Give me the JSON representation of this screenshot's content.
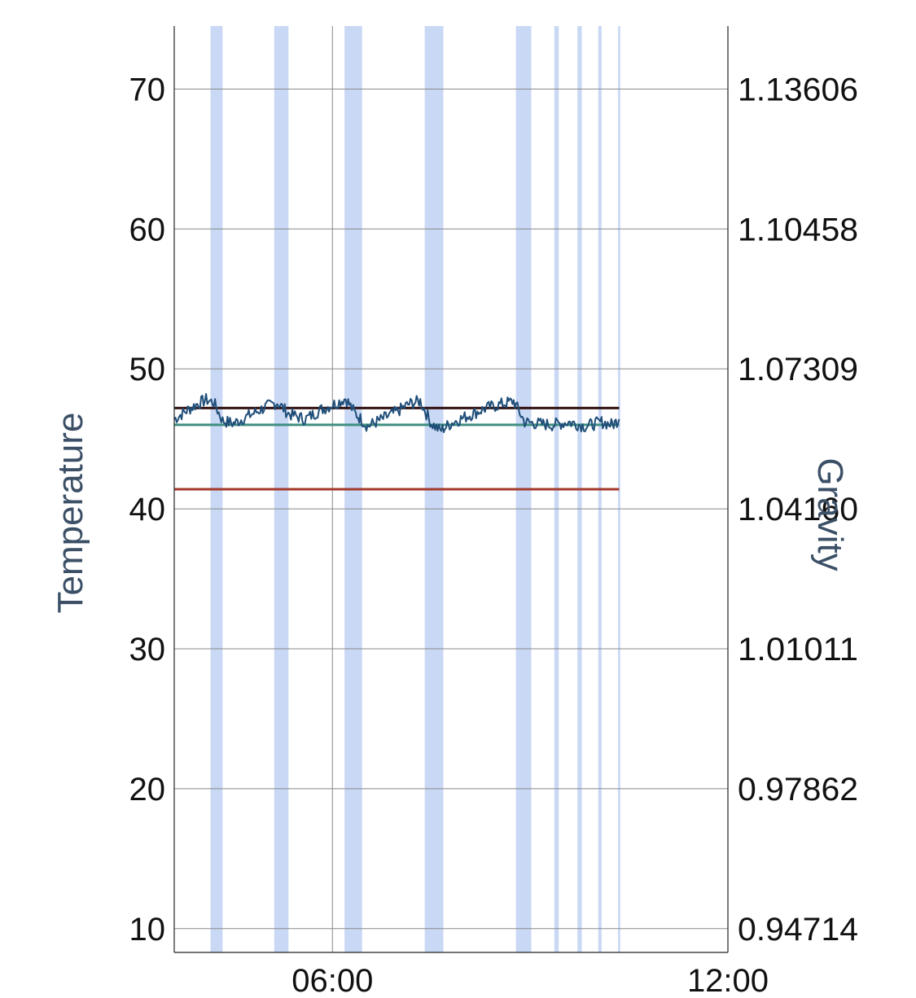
{
  "chart_data": {
    "type": "line",
    "x_axis": {
      "type": "time",
      "ticks": [
        "06:00",
        "12:00"
      ],
      "range": [
        "03:36",
        "12:00"
      ]
    },
    "y_left": {
      "label": "Temperature",
      "range": [
        8.3,
        74.5
      ],
      "ticks": [
        70,
        60,
        50,
        40,
        30,
        20,
        10
      ]
    },
    "y_right": {
      "label": "Gravity",
      "tick_labels": [
        "1.13606",
        "1.10458",
        "1.07309",
        "1.04160",
        "1.01011",
        "0.97862",
        "0.94714"
      ]
    },
    "grid": true,
    "colors": {
      "temperature_line": "#1f4e79",
      "upper_reference": "#2b0a0a",
      "middle_reference": "#3f8f80",
      "lower_reference": "#a33a2a",
      "shaded_band": "#c9d8f5",
      "grid": "#888888",
      "axis_title": "#3b4f66"
    },
    "shaded_bands": [
      {
        "start": "04:09",
        "end": "04:20"
      },
      {
        "start": "05:07",
        "end": "05:20"
      },
      {
        "start": "06:11",
        "end": "06:27"
      },
      {
        "start": "07:24",
        "end": "07:41"
      },
      {
        "start": "08:47",
        "end": "09:01"
      },
      {
        "start": "09:22",
        "end": "09:26"
      },
      {
        "start": "09:43",
        "end": "09:47"
      },
      {
        "start": "10:02",
        "end": "10:05"
      },
      {
        "start": "10:20",
        "end": "10:22"
      }
    ],
    "reference_lines": [
      {
        "value": 47.2,
        "start": "03:36",
        "end": "10:21",
        "color": "#2b0a0a"
      },
      {
        "value": 46.0,
        "start": "03:36",
        "end": "10:21",
        "color": "#3f8f80"
      },
      {
        "value": 41.4,
        "start": "03:36",
        "end": "10:21",
        "color": "#a33a2a"
      }
    ],
    "series": [
      {
        "x": [
          "03:36",
          "03:45",
          "03:55",
          "04:05",
          "04:12",
          "04:20",
          "04:30",
          "04:45",
          "05:00",
          "05:10",
          "05:20",
          "05:35",
          "05:50",
          "06:05",
          "06:12",
          "06:20",
          "06:32",
          "06:45",
          "07:00",
          "07:10",
          "07:20",
          "07:30",
          "07:38",
          "07:50",
          "08:05",
          "08:20",
          "08:35",
          "08:45",
          "08:55",
          "09:05",
          "09:20",
          "09:35",
          "09:50",
          "10:05",
          "10:15",
          "10:21"
        ],
        "values": [
          46.4,
          46.9,
          47.4,
          47.8,
          47.6,
          46.3,
          46.1,
          46.7,
          47.3,
          47.6,
          46.8,
          46.4,
          47.1,
          47.6,
          47.9,
          46.9,
          45.9,
          46.4,
          47.0,
          47.5,
          47.7,
          46.1,
          45.6,
          46.2,
          46.7,
          47.2,
          47.5,
          47.7,
          46.2,
          46.1,
          46.0,
          46.2,
          45.9,
          46.2,
          46.0,
          46.4
        ]
      }
    ]
  }
}
